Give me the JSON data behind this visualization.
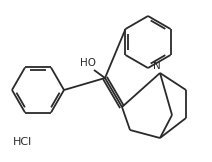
{
  "bg_color": "#ffffff",
  "line_color": "#2a2a2a",
  "line_width": 1.3,
  "figsize": [
    2.12,
    1.62
  ],
  "dpi": 100,
  "hcl_text": "HCl",
  "oh_text": "HO",
  "n_text": "N"
}
